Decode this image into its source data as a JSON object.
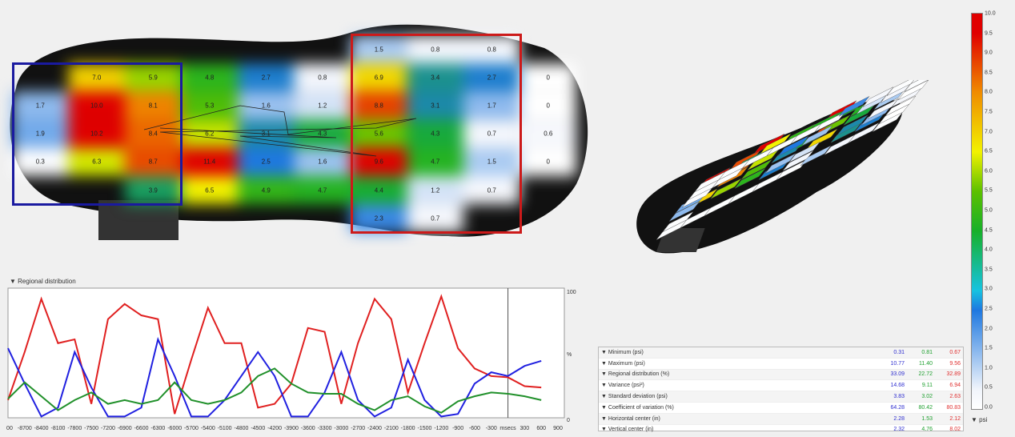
{
  "heatmap": {
    "colors": {
      "blue_region": "#1a1aa0",
      "red_region": "#cc1a1a"
    },
    "cells": [
      [
        null,
        null,
        null,
        null,
        null,
        null,
        "1.5",
        "0.8",
        "0.8",
        null
      ],
      [
        null,
        "7.0",
        "5.9",
        "4.8",
        "2.7",
        "0.8",
        "6.9",
        "3.4",
        "2.7",
        "0"
      ],
      [
        "1.7",
        "10.0",
        "8.1",
        "5.3",
        "1.6",
        "1.2",
        "8.8",
        "3.1",
        "1.7",
        "0"
      ],
      [
        "1.9",
        "10.2",
        "8.4",
        "6.2",
        "3.1",
        "4.3",
        "5.6",
        "4.3",
        "0.7",
        "0.6"
      ],
      [
        "0.3",
        "6.3",
        "8.7",
        "11.4",
        "2.5",
        "1.6",
        "9.6",
        "4.7",
        "1.5",
        "0"
      ],
      [
        null,
        null,
        "3.9",
        "6.5",
        "4.9",
        "4.7",
        "4.4",
        "1.2",
        "0.7",
        null
      ],
      [
        null,
        null,
        null,
        null,
        null,
        null,
        "2.3",
        "0.7",
        null,
        null
      ]
    ]
  },
  "chart_data": {
    "type": "line",
    "title": "Regional distribution",
    "x": [
      -9000,
      -8700,
      -8400,
      -8100,
      -7800,
      -7500,
      -7200,
      -6900,
      -6600,
      -6300,
      -6000,
      -5700,
      -5400,
      -5100,
      -4800,
      -4500,
      -4200,
      -3900,
      -3600,
      -3300,
      -3000,
      -2700,
      -2400,
      -2100,
      -1800,
      -1500,
      -1200,
      -900,
      -600,
      -300,
      0,
      300,
      600
    ],
    "xtick_labels": [
      "000",
      "-8700",
      "-8400",
      "-8100",
      "-7800",
      "-7500",
      "-7200",
      "-6900",
      "-6600",
      "-6300",
      "-6000",
      "-5700",
      "-5400",
      "-5100",
      "-4800",
      "-4500",
      "-4200",
      "-3900",
      "-3600",
      "-3300",
      "-3000",
      "-2700",
      "-2400",
      "-2100",
      "-1800",
      "-1500",
      "-1200",
      "-900",
      "-600",
      "-300",
      "msecs",
      "300",
      "600",
      "900"
    ],
    "xlabel": "msecs",
    "ylim": [
      0,
      100
    ],
    "ytick_labels": [
      "100",
      "%",
      "0"
    ],
    "series": [
      {
        "color": "#e02020",
        "values": [
          14,
          52,
          94,
          59,
          62,
          11,
          78,
          90,
          81,
          78,
          3,
          46,
          87,
          59,
          59,
          8,
          11,
          27,
          71,
          68,
          11,
          59,
          94,
          78,
          20,
          59,
          96,
          55,
          39,
          33,
          32,
          25,
          24
        ]
      },
      {
        "color": "#2020e0",
        "values": [
          55,
          27,
          1,
          8,
          52,
          24,
          1,
          1,
          8,
          62,
          33,
          1,
          1,
          14,
          33,
          52,
          33,
          1,
          1,
          20,
          52,
          14,
          1,
          8,
          46,
          14,
          1,
          3,
          27,
          36,
          33,
          41,
          45
        ]
      },
      {
        "color": "#20902a",
        "values": [
          15,
          28,
          17,
          6,
          14,
          20,
          11,
          14,
          11,
          14,
          28,
          14,
          11,
          14,
          20,
          33,
          39,
          27,
          20,
          19,
          19,
          11,
          6,
          14,
          17,
          9,
          4,
          13,
          17,
          20,
          19,
          17,
          14
        ]
      }
    ]
  },
  "stats": {
    "colors": [
      "#3030d0",
      "#20a030",
      "#e03030"
    ],
    "rows": [
      {
        "label": "Minimum (psi)",
        "v": [
          "0.31",
          "0.81",
          "0.67"
        ]
      },
      {
        "label": "Maximum (psi)",
        "v": [
          "10.77",
          "11.40",
          "9.56"
        ]
      },
      {
        "label": "Regional distribution (%)",
        "v": [
          "33.09",
          "22.72",
          "32.89"
        ]
      },
      {
        "label": "Variance (psi²)",
        "v": [
          "14.68",
          "9.11",
          "6.94"
        ]
      },
      {
        "label": "Standard deviation (psi)",
        "v": [
          "3.83",
          "3.02",
          "2.63"
        ]
      },
      {
        "label": "Coefficient of variation (%)",
        "v": [
          "64.28",
          "80.42",
          "80.83"
        ]
      },
      {
        "label": "Horizontal center (in)",
        "v": [
          "2.28",
          "1.53",
          "2.12"
        ]
      },
      {
        "label": "Vertical center (in)",
        "v": [
          "2.32",
          "4.76",
          "8.02"
        ]
      }
    ]
  },
  "scale": {
    "ticks": [
      "10.0",
      "9.5",
      "9.0",
      "8.5",
      "8.0",
      "7.5",
      "7.0",
      "6.5",
      "6.0",
      "5.5",
      "5.0",
      "4.5",
      "4.0",
      "3.5",
      "3.0",
      "2.5",
      "2.0",
      "1.5",
      "1.0",
      "0.5",
      "0.0"
    ],
    "unit": "psi"
  }
}
